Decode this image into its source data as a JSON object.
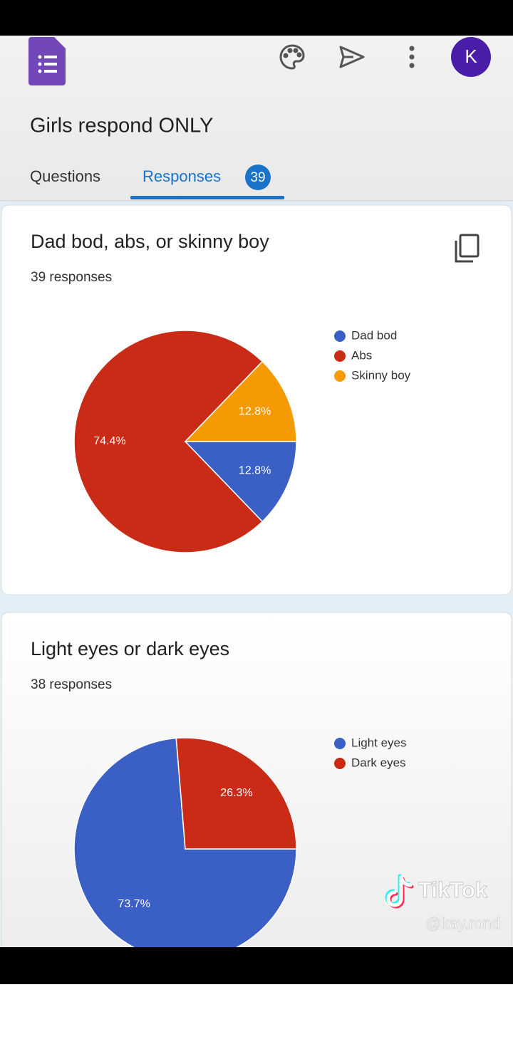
{
  "app_bar": {
    "avatar": "K"
  },
  "form_title": "Girls respond ONLY",
  "tabs": {
    "questions": "Questions",
    "responses": "Responses",
    "response_count": 39
  },
  "cards": [
    {
      "title": "Dad bod, abs, or skinny boy",
      "subtitle": "39 responses",
      "chart_data": {
        "type": "pie",
        "categories": [
          "Dad bod",
          "Abs",
          "Skinny boy"
        ],
        "values": [
          12.8,
          74.4,
          12.8
        ],
        "value_labels": [
          "12.8%",
          "74.4%",
          "12.8%"
        ],
        "colors": [
          "#3a60c6",
          "#c92b16",
          "#f59a00"
        ]
      }
    },
    {
      "title": "Light eyes or dark eyes",
      "subtitle": "38 responses",
      "chart_data": {
        "type": "pie",
        "categories": [
          "Light eyes",
          "Dark eyes"
        ],
        "values": [
          73.7,
          26.3
        ],
        "value_labels": [
          "73.7%",
          "26.3%"
        ],
        "colors": [
          "#3a60c6",
          "#c92b16"
        ]
      }
    }
  ],
  "watermark": {
    "brand": "TikTok",
    "handle": "@kay.rond"
  }
}
